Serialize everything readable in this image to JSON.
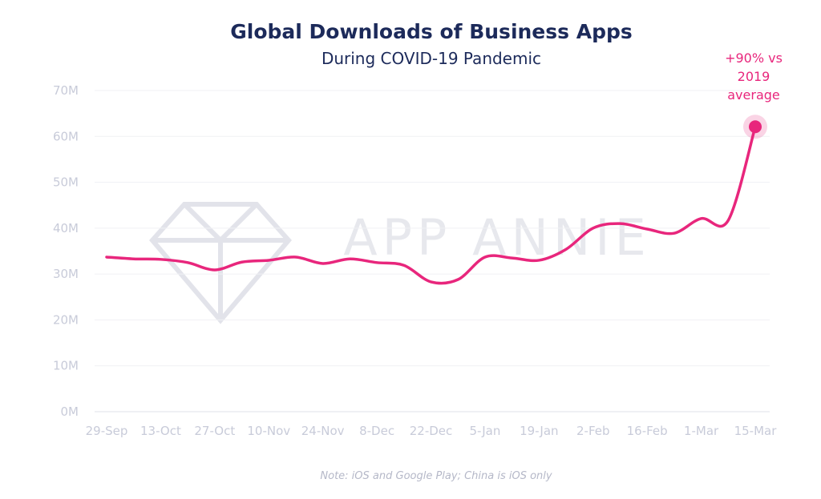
{
  "chart_data": {
    "type": "line",
    "title": "Global Downloads of Business Apps",
    "subtitle": "During COVID-19 Pandemic",
    "note": "Note: iOS and Google Play; China is iOS only",
    "watermark": "APP ANNIE",
    "annotation": [
      "+90% vs",
      "2019",
      "average"
    ],
    "categories": [
      "29-Sep",
      null,
      "13-Oct",
      null,
      "27-Oct",
      null,
      "10-Nov",
      null,
      "24-Nov",
      null,
      "8-Dec",
      null,
      "22-Dec",
      null,
      "5-Jan",
      null,
      "19-Jan",
      null,
      "2-Feb",
      null,
      "16-Feb",
      null,
      "1-Mar",
      null,
      "15-Mar"
    ],
    "series": [
      {
        "color": "#e8267c",
        "values": [
          33.7,
          33.3,
          33.2,
          32.5,
          30.9,
          32.6,
          33.0,
          33.7,
          32.3,
          33.3,
          32.5,
          31.9,
          28.3,
          28.8,
          33.7,
          33.5,
          33.0,
          35.4,
          40.0,
          41.0,
          39.8,
          38.9,
          42.1,
          41.7,
          62.1
        ]
      }
    ],
    "ylim": [
      0,
      70
    ],
    "yticks": [
      {
        "value": 0,
        "label": "0M"
      },
      {
        "value": 10,
        "label": "10M"
      },
      {
        "value": 20,
        "label": "20M"
      },
      {
        "value": 30,
        "label": "30M"
      },
      {
        "value": 40,
        "label": "40M"
      },
      {
        "value": 50,
        "label": "50M"
      },
      {
        "value": 60,
        "label": "60M"
      },
      {
        "value": 70,
        "label": "70M"
      }
    ],
    "grid": true
  }
}
